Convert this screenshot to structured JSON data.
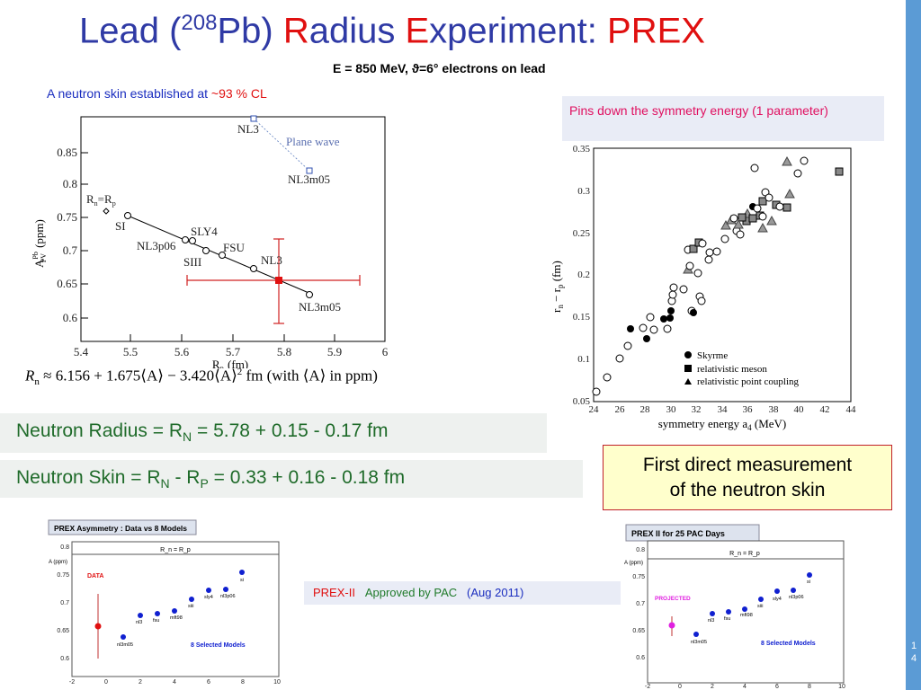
{
  "title": {
    "p1": "Lead (",
    "sup": "208",
    "p2": "Pb) ",
    "r1": "R",
    "p3": "adius ",
    "r2": "E",
    "p4": "xperiment: ",
    "r3": "PREX"
  },
  "subtitle": "E = 850 MeV, ϑ=6° electrons  on  lead",
  "note": {
    "text": "A  neutron skin established  at ",
    "cl": "~93 % CL"
  },
  "left_plot": {
    "ylabel": "A",
    "ylabel_sup": "Pb",
    "ylabel_sub": "PV",
    "ylabel_unit": "(ppm)",
    "xlabel": "R",
    "xlabel_sub": "n",
    "xlabel_unit": "(fm)",
    "xticks": [
      "5.4",
      "5.5",
      "5.6",
      "5.7",
      "5.8",
      "5.9",
      "6"
    ],
    "yticks": [
      "0.85",
      "0.8",
      "0.75",
      "0.7",
      "0.65",
      "0.6"
    ],
    "labels": {
      "rnrp": "R",
      "rnrp2": "n",
      "rnrp3": "=R",
      "rnrp4": "p",
      "si": "SI",
      "sly4": "SLY4",
      "nl3p06": "NL3p06",
      "siii": "SIII",
      "fsu": "FSU",
      "nl3": "NL3",
      "nl3m05": "NL3m05",
      "nl3_top": "NL3",
      "plane": "Plane wave",
      "nl3m05_top": "NL3m05"
    }
  },
  "formula": {
    "a": "R",
    "a_sub": "n",
    "b": " ≈ 6.156 + 1.675⟨A⟩ − 3.420⟨A⟩",
    "b_sup": "2",
    "c": " fm  (with ⟨A⟩ in ppm)"
  },
  "pinbox": "Pins  down  the  symmetry  energy  (1 parameter)",
  "right_plot": {
    "ylabel": "r",
    "ylabel_n": "n",
    "ylabel_mid": " − r",
    "ylabel_p": "p",
    "ylabel_unit": " (fm)",
    "xlabel": "symmetry energy a",
    "xlabel_sub": "4",
    "xlabel_unit": " (MeV)",
    "xticks": [
      "24",
      "26",
      "28",
      "30",
      "32",
      "34",
      "36",
      "38",
      "40",
      "42",
      "44"
    ],
    "yticks": [
      "0.35",
      "0.3",
      "0.25",
      "0.2",
      "0.15",
      "0.1",
      "0.05"
    ],
    "legend": [
      "Skyrme",
      "relativistic meson",
      "relativistic point coupling"
    ]
  },
  "band1": {
    "a": "Neutron  Radius  =  R",
    "sub": "N",
    "b": " =  5.78  + 0.15  - 0.17   fm"
  },
  "band2": {
    "a": "Neutron  Skin  =  R",
    "sub1": "N",
    "b": "  -  R",
    "sub2": "P",
    "c": "  =  0.33  + 0.16  - 0.18   fm"
  },
  "yellow": {
    "l1": "First direct measurement",
    "l2": "of the neutron skin"
  },
  "prex2": {
    "a": "PREX-II",
    "b": "Approved  by  PAC",
    "c": "(Aug  2011)"
  },
  "small1": {
    "header": "PREX Asymmetry : Data vs 8 Models",
    "sub": "R_n = R_p",
    "yaxis": "A (ppm)",
    "tag": "DATA",
    "models": "8 Selected Models",
    "labels": [
      "nl3m05",
      "nl3",
      "fsu",
      "nl3p06",
      "mft98",
      "siii",
      "sly4",
      "si"
    ],
    "yticks": [
      "0.8",
      "0.75",
      "0.7",
      "0.65",
      "0.6"
    ],
    "xticks": [
      "-2",
      "0",
      "2",
      "4",
      "6",
      "8",
      "10"
    ]
  },
  "small2": {
    "header": "PREX II  for 25  PAC  Days",
    "sub": "R_n = R_p",
    "yaxis": "A (ppm)",
    "tag": "PROJECTED",
    "models": "8 Selected Models",
    "labels": [
      "nl3m05",
      "nl3",
      "fsu",
      "nl3p06",
      "mft98",
      "siii",
      "sly4",
      "si"
    ],
    "yticks": [
      "0.8",
      "0.75",
      "0.7",
      "0.65",
      "0.6"
    ],
    "xticks": [
      "-2",
      "0",
      "2",
      "4",
      "6",
      "8",
      "10"
    ]
  },
  "page": {
    "a": "1",
    "b": "4"
  }
}
